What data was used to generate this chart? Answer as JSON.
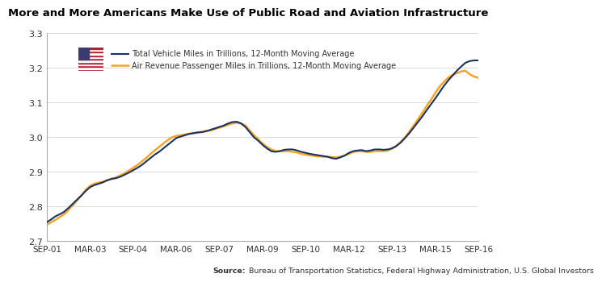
{
  "title": "More and More Americans Make Use of Public Road and Aviation Infrastructure",
  "source_bold": "Source:",
  "source_rest": " Bureau of Transportation Statistics, Federal Highway Administration, U.S. Global Investors",
  "legend_label_dark": "Total Vehicle Miles in Trillions, 12-Month Moving Average",
  "legend_label_orange": "Air Revenue Passenger Miles in Trillions, 12-Month Moving Average",
  "dark_color": "#1a3263",
  "orange_color": "#f5a623",
  "background_color": "#ffffff",
  "ylim": [
    2.7,
    3.3
  ],
  "yticks": [
    2.7,
    2.8,
    2.9,
    3.0,
    3.1,
    3.2,
    3.3
  ],
  "xtick_labels": [
    "SEP-01",
    "MAR-03",
    "SEP-04",
    "MAR-06",
    "SEP-07",
    "MAR-09",
    "SEP-10",
    "MAR-12",
    "SEP-13",
    "MAR-15",
    "SEP-16"
  ],
  "dark_x": [
    0,
    1,
    2,
    3,
    4,
    5,
    6,
    7,
    8,
    9,
    10,
    11,
    12,
    13,
    14,
    15,
    16,
    17,
    18,
    19,
    20,
    21,
    22,
    23,
    24,
    25,
    26,
    27,
    28,
    29,
    30,
    31,
    32,
    33,
    34,
    35,
    36,
    37,
    38,
    39,
    40,
    41,
    42,
    43,
    44,
    45,
    46,
    47,
    48,
    49,
    50,
    51,
    52,
    53,
    54,
    55,
    56,
    57,
    58,
    59,
    60,
    61,
    62,
    63,
    64,
    65,
    66,
    67,
    68,
    69,
    70,
    71,
    72,
    73,
    74,
    75,
    76,
    77,
    78,
    79,
    80,
    81,
    82,
    83,
    84,
    85,
    86,
    87,
    88,
    89,
    90,
    91,
    92,
    93,
    94,
    95,
    96,
    97,
    98,
    99,
    100
  ],
  "dark_y": [
    2.755,
    2.763,
    2.772,
    2.778,
    2.785,
    2.796,
    2.808,
    2.82,
    2.832,
    2.845,
    2.856,
    2.862,
    2.866,
    2.87,
    2.876,
    2.88,
    2.882,
    2.886,
    2.892,
    2.898,
    2.905,
    2.912,
    2.92,
    2.93,
    2.94,
    2.95,
    2.958,
    2.968,
    2.978,
    2.988,
    2.998,
    3.002,
    3.006,
    3.01,
    3.012,
    3.014,
    3.015,
    3.018,
    3.022,
    3.026,
    3.03,
    3.034,
    3.04,
    3.044,
    3.045,
    3.04,
    3.03,
    3.015,
    3.0,
    2.99,
    2.978,
    2.968,
    2.96,
    2.958,
    2.96,
    2.964,
    2.965,
    2.965,
    2.962,
    2.958,
    2.955,
    2.952,
    2.95,
    2.948,
    2.946,
    2.944,
    2.94,
    2.938,
    2.942,
    2.947,
    2.955,
    2.96,
    2.962,
    2.963,
    2.96,
    2.962,
    2.965,
    2.965,
    2.964,
    2.965,
    2.968,
    2.975,
    2.985,
    2.998,
    3.012,
    3.028,
    3.044,
    3.06,
    3.078,
    3.095,
    3.112,
    3.13,
    3.148,
    3.164,
    3.178,
    3.192,
    3.204,
    3.215,
    3.22,
    3.222,
    3.222
  ],
  "orange_x": [
    0,
    1,
    2,
    3,
    4,
    5,
    6,
    7,
    8,
    9,
    10,
    11,
    12,
    13,
    14,
    15,
    16,
    17,
    18,
    19,
    20,
    21,
    22,
    23,
    24,
    25,
    26,
    27,
    28,
    29,
    30,
    31,
    32,
    33,
    34,
    35,
    36,
    37,
    38,
    39,
    40,
    41,
    42,
    43,
    44,
    45,
    46,
    47,
    48,
    49,
    50,
    51,
    52,
    53,
    54,
    55,
    56,
    57,
    58,
    59,
    60,
    61,
    62,
    63,
    64,
    65,
    66,
    67,
    68,
    69,
    70,
    71,
    72,
    73,
    74,
    75,
    76,
    77,
    78,
    79,
    80,
    81,
    82,
    83,
    84,
    85,
    86,
    87,
    88,
    89,
    90,
    91,
    92,
    93,
    94,
    95,
    96,
    97,
    98,
    99,
    100
  ],
  "orange_y": [
    2.748,
    2.755,
    2.762,
    2.77,
    2.778,
    2.79,
    2.804,
    2.818,
    2.832,
    2.848,
    2.86,
    2.866,
    2.869,
    2.872,
    2.876,
    2.88,
    2.884,
    2.89,
    2.896,
    2.904,
    2.912,
    2.92,
    2.93,
    2.94,
    2.952,
    2.962,
    2.972,
    2.982,
    2.992,
    3.0,
    3.004,
    3.006,
    3.008,
    3.01,
    3.012,
    3.014,
    3.016,
    3.018,
    3.02,
    3.024,
    3.028,
    3.032,
    3.036,
    3.04,
    3.042,
    3.04,
    3.034,
    3.02,
    3.006,
    2.994,
    2.982,
    2.972,
    2.965,
    2.96,
    2.96,
    2.96,
    2.96,
    2.958,
    2.956,
    2.952,
    2.95,
    2.948,
    2.946,
    2.945,
    2.944,
    2.944,
    2.943,
    2.942,
    2.944,
    2.948,
    2.952,
    2.958,
    2.96,
    2.96,
    2.958,
    2.958,
    2.96,
    2.96,
    2.96,
    2.962,
    2.968,
    2.975,
    2.986,
    3.0,
    3.016,
    3.034,
    3.052,
    3.07,
    3.09,
    3.108,
    3.128,
    3.146,
    3.16,
    3.172,
    3.18,
    3.185,
    3.19,
    3.192,
    3.182,
    3.175,
    3.172
  ],
  "flag_stripe_colors": [
    "#B22234",
    "#FFFFFF",
    "#B22234",
    "#FFFFFF",
    "#B22234",
    "#FFFFFF",
    "#B22234",
    "#FFFFFF",
    "#B22234",
    "#FFFFFF",
    "#B22234",
    "#FFFFFF",
    "#B22234"
  ],
  "flag_canton_color": "#3C3B6E"
}
